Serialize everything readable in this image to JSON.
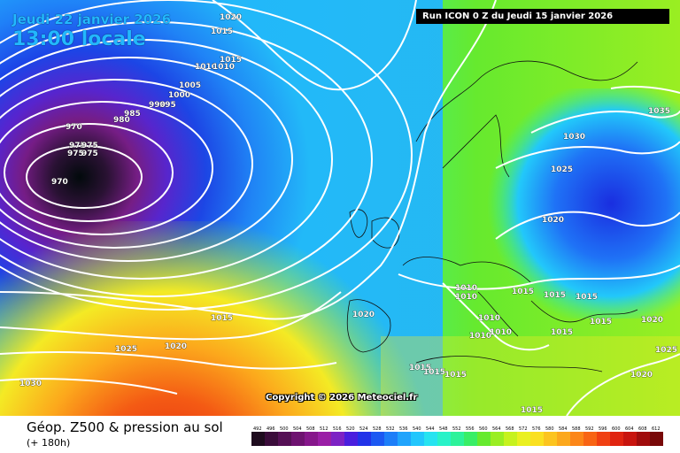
{
  "header": {
    "date": "Jeudi 22 janvier 2026",
    "local_time": "13:00 locale",
    "run_info": "Run ICON 0 Z du Jeudi 15 janvier 2026"
  },
  "copyright": "Copyright © 2026 Meteociel.fr",
  "footer": {
    "title": "Géop. Z500 & pression au sol",
    "forecast_hour": "(+ 180h)"
  },
  "scale": {
    "labels": [
      "492",
      "496",
      "500",
      "504",
      "508",
      "512",
      "516",
      "520",
      "524",
      "528",
      "532",
      "536",
      "540",
      "544",
      "548",
      "552",
      "556",
      "560",
      "564",
      "568",
      "572",
      "576",
      "580",
      "584",
      "588",
      "592",
      "596",
      "600",
      "604",
      "608",
      "612"
    ],
    "colors": [
      "#1e0b1e",
      "#3a0c3a",
      "#551055",
      "#6e1270",
      "#86168b",
      "#9a1ea6",
      "#7d22c4",
      "#4a1ede",
      "#2232e8",
      "#1c58f2",
      "#1d7ef8",
      "#20a4fc",
      "#22c6fc",
      "#26e3f0",
      "#28f2c8",
      "#2cf29a",
      "#38ee66",
      "#66ea2e",
      "#9aee22",
      "#c6f21e",
      "#eaf020",
      "#fae020",
      "#fcc41e",
      "#fca81c",
      "#fc8618",
      "#f86414",
      "#f04012",
      "#e02410",
      "#c8140e",
      "#a00c0c",
      "#780808"
    ]
  },
  "isobars": [
    {
      "value": "1020",
      "key": "i1"
    },
    {
      "value": "1015",
      "key": "i2"
    },
    {
      "value": "1015",
      "key": "i3"
    },
    {
      "value": "1010",
      "key": "i4"
    },
    {
      "value": "1010",
      "key": "i5"
    },
    {
      "value": "1005",
      "key": "i6"
    },
    {
      "value": "1000",
      "key": "i7"
    },
    {
      "value": "995",
      "key": "i8"
    },
    {
      "value": "990",
      "key": "i9"
    },
    {
      "value": "985",
      "key": "i10"
    },
    {
      "value": "980",
      "key": "i11"
    },
    {
      "value": "975",
      "key": "i12"
    },
    {
      "value": "975",
      "key": "i13"
    },
    {
      "value": "975",
      "key": "i14"
    },
    {
      "value": "975",
      "key": "i15"
    },
    {
      "value": "970",
      "key": "i16"
    },
    {
      "value": "970",
      "key": "i17"
    },
    {
      "value": "1035",
      "key": "i18"
    },
    {
      "value": "1030",
      "key": "i19"
    },
    {
      "value": "1025",
      "key": "i20"
    },
    {
      "value": "1020",
      "key": "i21"
    },
    {
      "value": "1010",
      "key": "i22"
    },
    {
      "value": "1010",
      "key": "i23"
    },
    {
      "value": "1015",
      "key": "i24"
    },
    {
      "value": "1015",
      "key": "i25"
    },
    {
      "value": "1015",
      "key": "i26"
    },
    {
      "value": "1020",
      "key": "i27"
    },
    {
      "value": "1010",
      "key": "i28"
    },
    {
      "value": "1010",
      "key": "i29"
    },
    {
      "value": "1010",
      "key": "i30"
    },
    {
      "value": "1015",
      "key": "i31"
    },
    {
      "value": "1015",
      "key": "i32"
    },
    {
      "value": "1020",
      "key": "i33"
    },
    {
      "value": "1025",
      "key": "i34"
    },
    {
      "value": "1015",
      "key": "i35"
    },
    {
      "value": "1015",
      "key": "i36"
    },
    {
      "value": "1015",
      "key": "i37"
    },
    {
      "value": "1020",
      "key": "i38"
    },
    {
      "value": "1015",
      "key": "i39"
    },
    {
      "value": "1025",
      "key": "i40"
    },
    {
      "value": "1020",
      "key": "i41"
    },
    {
      "value": "1030",
      "key": "i42"
    }
  ]
}
